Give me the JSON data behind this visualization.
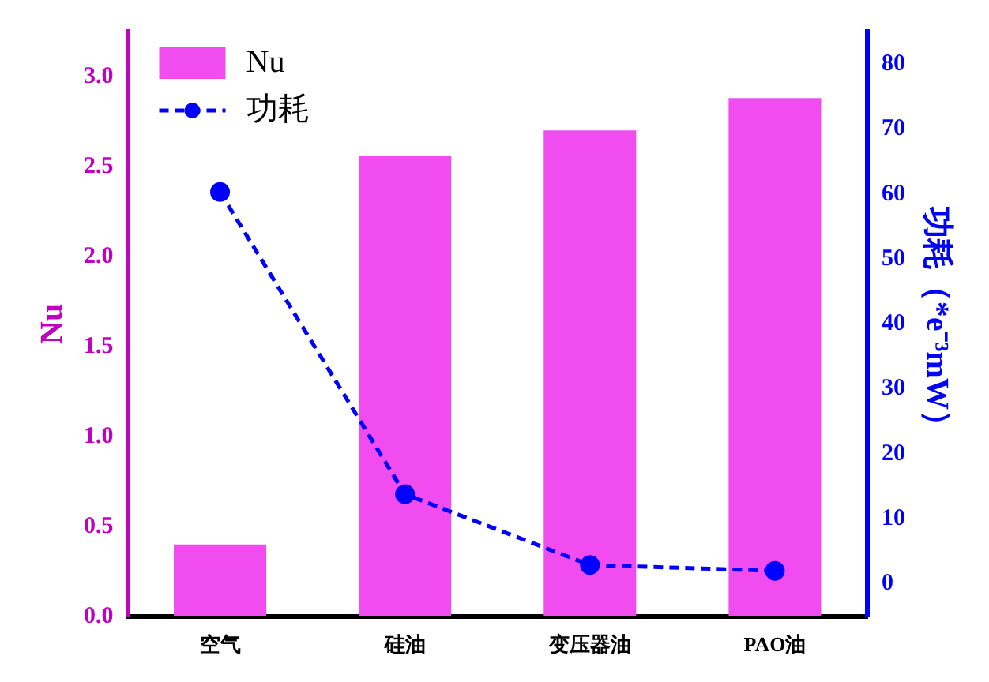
{
  "chart_data": {
    "type": "bar",
    "categories": [
      "空气",
      "硅油",
      "变压器油",
      "PAO油"
    ],
    "series": [
      {
        "name": "Nu",
        "color": "#f04cf0",
        "values": [
          0.4,
          2.56,
          2.7,
          2.88
        ]
      },
      {
        "name": "功耗",
        "type": "line",
        "color": "#0000ff",
        "axis": "y2",
        "values": [
          60.3,
          13.8,
          2.9,
          2.0
        ],
        "marker": "circle",
        "line_style": "dashed"
      }
    ],
    "ylabel": "Nu",
    "y2label": "功耗（*e⁻³mW）",
    "ylim": [
      0,
      3.25
    ],
    "yticks": [
      {
        "value": 0,
        "label": "0.0"
      },
      {
        "value": 0.5,
        "label": "0.5"
      },
      {
        "value": 1,
        "label": "1.0"
      },
      {
        "value": 1.5,
        "label": "1.5"
      },
      {
        "value": 2,
        "label": "2.0"
      },
      {
        "value": 2.5,
        "label": "2.5"
      },
      {
        "value": 3,
        "label": "3.0"
      }
    ],
    "y2lim": [
      -5,
      85
    ],
    "y2ticks": [
      0,
      10,
      20,
      30,
      40,
      50,
      60,
      70,
      80
    ],
    "grid": false,
    "legend": "top left"
  }
}
